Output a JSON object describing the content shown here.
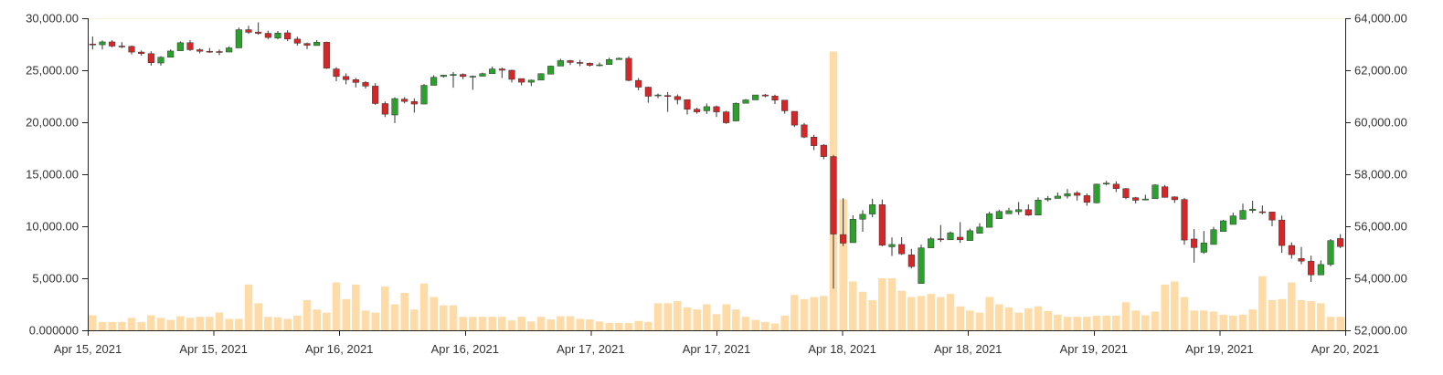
{
  "chart_data": {
    "type": "candlestick",
    "title": "",
    "xlabel": "",
    "ylabel": "",
    "x_tick_labels": [
      "Apr 15, 2021",
      "Apr 15, 2021",
      "Apr 16, 2021",
      "Apr 16, 2021",
      "Apr 17, 2021",
      "Apr 17, 2021",
      "Apr 18, 2021",
      "Apr 18, 2021",
      "Apr 19, 2021",
      "Apr 19, 2021",
      "Apr 20, 2021"
    ],
    "volume_axis": {
      "side": "left",
      "range": [
        0,
        30000
      ],
      "tick_labels": [
        "0.000000",
        "5,000.00",
        "10,000.00",
        "15,000.00",
        "20,000.00",
        "25,000.00",
        "30,000.00"
      ]
    },
    "price_axis": {
      "side": "right",
      "range": [
        52000,
        64000
      ],
      "tick_labels": [
        "52,000.00",
        "54,000.00",
        "56,000.00",
        "58,000.00",
        "60,000.00",
        "62,000.00",
        "64,000.00"
      ]
    },
    "up_color": "#2ca02c",
    "down_color": "#d62728",
    "wick_color": "#333333",
    "volume_color": "#ffdba8",
    "grid": false,
    "legend": "none",
    "candles": [
      [
        63010,
        63000,
        63300,
        62800,
        1450
      ],
      [
        62980,
        63090,
        63150,
        62800,
        800
      ],
      [
        63090,
        62930,
        63160,
        62880,
        800
      ],
      [
        62930,
        62920,
        63080,
        62850,
        800
      ],
      [
        62920,
        62700,
        62950,
        62610,
        1200
      ],
      [
        62700,
        62640,
        62760,
        62560,
        800
      ],
      [
        62640,
        62290,
        62730,
        62180,
        1450
      ],
      [
        62280,
        62500,
        62540,
        62180,
        1200
      ],
      [
        62500,
        62740,
        62800,
        62630,
        1000
      ],
      [
        62750,
        63060,
        63110,
        62900,
        1350
      ],
      [
        63060,
        62790,
        63160,
        62740,
        1200
      ],
      [
        62790,
        62730,
        62840,
        62650,
        1300
      ],
      [
        62730,
        62720,
        62860,
        62670,
        1300
      ],
      [
        62720,
        62700,
        62800,
        62580,
        1700
      ],
      [
        62700,
        62860,
        62920,
        62730,
        1100
      ],
      [
        62860,
        63560,
        63640,
        62870,
        1100
      ],
      [
        63560,
        63460,
        63710,
        63400,
        4400
      ],
      [
        63470,
        63420,
        63840,
        63370,
        2600
      ],
      [
        63420,
        63260,
        63520,
        63200,
        1300
      ],
      [
        63240,
        63430,
        63510,
        63190,
        1250
      ],
      [
        63440,
        63200,
        63540,
        63120,
        1100
      ],
      [
        63200,
        63040,
        63290,
        62950,
        1400
      ],
      [
        63030,
        62960,
        63060,
        62810,
        2900
      ],
      [
        62950,
        63080,
        63160,
        62950,
        2000
      ],
      [
        63080,
        62080,
        63100,
        62050,
        1700
      ],
      [
        62050,
        61760,
        62120,
        61580,
        4600
      ],
      [
        61760,
        61640,
        61880,
        61460,
        3000
      ],
      [
        61640,
        61530,
        61700,
        61340,
        4400
      ],
      [
        61530,
        61390,
        61580,
        61300,
        1900
      ],
      [
        61390,
        60720,
        61500,
        60670,
        1700
      ],
      [
        60720,
        60310,
        60800,
        60200,
        4200
      ],
      [
        60280,
        60910,
        60960,
        59970,
        2500
      ],
      [
        60890,
        60800,
        60970,
        60730,
        3600
      ],
      [
        60800,
        60700,
        60920,
        60370,
        2000
      ],
      [
        60700,
        61420,
        61470,
        60760,
        4500
      ],
      [
        61420,
        61730,
        61810,
        61440,
        3200
      ],
      [
        61760,
        61810,
        61830,
        61720,
        2400
      ],
      [
        61800,
        61840,
        61930,
        61330,
        2400
      ],
      [
        61840,
        61760,
        61880,
        61660,
        1300
      ],
      [
        61760,
        61770,
        61800,
        61250,
        1300
      ],
      [
        61770,
        61870,
        61910,
        61770,
        1300
      ],
      [
        61870,
        62050,
        62140,
        61960,
        1300
      ],
      [
        62050,
        62000,
        62100,
        61700,
        1300
      ],
      [
        62000,
        61650,
        62020,
        61530,
        950
      ],
      [
        61680,
        61540,
        61680,
        61420,
        1300
      ],
      [
        61540,
        61620,
        61640,
        61390,
        850
      ],
      [
        61620,
        61870,
        61880,
        61620,
        1300
      ],
      [
        61850,
        62160,
        62180,
        61900,
        1050
      ],
      [
        62160,
        62370,
        62440,
        62280,
        1350
      ],
      [
        62370,
        62300,
        62400,
        62200,
        1350
      ],
      [
        62300,
        62270,
        62400,
        62160,
        1100
      ],
      [
        62270,
        62190,
        62300,
        62140,
        1050
      ],
      [
        62190,
        62210,
        62300,
        62150,
        850
      ],
      [
        62220,
        62410,
        62480,
        62230,
        700
      ],
      [
        62410,
        62460,
        62490,
        62430,
        700
      ],
      [
        62460,
        61610,
        62540,
        61580,
        700
      ],
      [
        61610,
        61350,
        61700,
        61230,
        900
      ],
      [
        61350,
        61000,
        61370,
        60750,
        800
      ],
      [
        61030,
        61050,
        61100,
        60930,
        2600
      ],
      [
        61030,
        60990,
        61160,
        60400,
        2600
      ],
      [
        60990,
        60870,
        61070,
        60690,
        2800
      ],
      [
        60870,
        60500,
        60870,
        60300,
        2200
      ],
      [
        60500,
        60400,
        60560,
        60330,
        2000
      ],
      [
        60440,
        60600,
        60720,
        60320,
        2500
      ],
      [
        60600,
        60400,
        60640,
        60200,
        1550
      ],
      [
        60400,
        59980,
        60440,
        59940,
        2500
      ],
      [
        60050,
        60730,
        60760,
        60030,
        2000
      ],
      [
        60730,
        60860,
        60890,
        60750,
        1300
      ],
      [
        60860,
        61050,
        61050,
        60870,
        1000
      ],
      [
        61050,
        61010,
        61090,
        60960,
        800
      ],
      [
        61010,
        60850,
        61060,
        60700,
        650
      ],
      [
        60850,
        60440,
        60860,
        60330,
        1400
      ],
      [
        60420,
        59890,
        60420,
        59820,
        3400
      ],
      [
        59900,
        59430,
        59970,
        59390,
        3000
      ],
      [
        59430,
        59100,
        59520,
        58930,
        3200
      ],
      [
        59120,
        58680,
        59160,
        58580,
        3300
      ],
      [
        58680,
        55700,
        58740,
        53600,
        26800
      ],
      [
        55680,
        55350,
        57080,
        55240,
        12600
      ],
      [
        55370,
        56270,
        56420,
        55510,
        4700
      ],
      [
        56270,
        56460,
        56620,
        55790,
        3700
      ],
      [
        56470,
        56830,
        57060,
        56350,
        2900
      ],
      [
        56830,
        55270,
        57030,
        55230,
        5000
      ],
      [
        55210,
        55300,
        55570,
        54860,
        5000
      ],
      [
        55300,
        54940,
        55580,
        54900,
        3800
      ],
      [
        54900,
        54450,
        55130,
        54380,
        3200
      ],
      [
        53800,
        55170,
        55300,
        53800,
        3300
      ],
      [
        55170,
        55520,
        55590,
        55360,
        3500
      ],
      [
        55520,
        55490,
        56050,
        55400,
        3200
      ],
      [
        55480,
        55750,
        55800,
        55550,
        3500
      ],
      [
        55580,
        55480,
        56160,
        55360,
        2300
      ],
      [
        55450,
        55830,
        55910,
        55620,
        1900
      ],
      [
        55730,
        55970,
        56120,
        55820,
        1700
      ],
      [
        55960,
        56480,
        56560,
        56190,
        3200
      ],
      [
        56290,
        56570,
        56640,
        56380,
        2500
      ],
      [
        56480,
        56600,
        56710,
        56620,
        2200
      ],
      [
        56560,
        56640,
        56930,
        56440,
        1700
      ],
      [
        56640,
        56430,
        56840,
        56400,
        2100
      ],
      [
        56430,
        57010,
        57110,
        56560,
        2300
      ],
      [
        57020,
        57070,
        57160,
        56950,
        1850
      ],
      [
        57070,
        57160,
        57300,
        57090,
        1500
      ],
      [
        57160,
        57250,
        57430,
        57070,
        1300
      ],
      [
        57280,
        57190,
        57350,
        56990,
        1300
      ],
      [
        57180,
        56920,
        57260,
        56790,
        1300
      ],
      [
        56900,
        57620,
        57640,
        56880,
        1400
      ],
      [
        57620,
        57660,
        57750,
        57570,
        1400
      ],
      [
        57620,
        57450,
        57730,
        57320,
        1400
      ],
      [
        57450,
        57100,
        57470,
        57040,
        2700
      ],
      [
        57100,
        57000,
        57130,
        56880,
        1900
      ],
      [
        57010,
        57050,
        57210,
        57000,
        1450
      ],
      [
        57060,
        57590,
        57620,
        57180,
        1800
      ],
      [
        57520,
        57110,
        57590,
        57100,
        4400
      ],
      [
        57130,
        57020,
        57150,
        56900,
        4700
      ],
      [
        57030,
        55470,
        57090,
        55290,
        3200
      ],
      [
        55510,
        55180,
        55890,
        54600,
        1900
      ],
      [
        55000,
        55360,
        55820,
        54940,
        1900
      ],
      [
        55300,
        55870,
        55980,
        55580,
        1800
      ],
      [
        55800,
        56210,
        56250,
        55920,
        1500
      ],
      [
        56070,
        56400,
        56520,
        56190,
        1400
      ],
      [
        56270,
        56610,
        56870,
        56460,
        1500
      ],
      [
        56610,
        56660,
        56980,
        56510,
        2000
      ],
      [
        56560,
        56550,
        56800,
        56460,
        5200
      ],
      [
        56550,
        56240,
        56550,
        56000,
        2900
      ],
      [
        56240,
        55260,
        56410,
        54980,
        3000
      ],
      [
        55260,
        54910,
        55380,
        54750,
        4600
      ],
      [
        54760,
        54660,
        55200,
        54540,
        2900
      ],
      [
        54660,
        54130,
        54870,
        53860,
        2800
      ],
      [
        54130,
        54530,
        54690,
        54300,
        2600
      ],
      [
        54530,
        55450,
        55510,
        54460,
        1300
      ],
      [
        55530,
        55220,
        55700,
        55160,
        1300
      ]
    ]
  }
}
